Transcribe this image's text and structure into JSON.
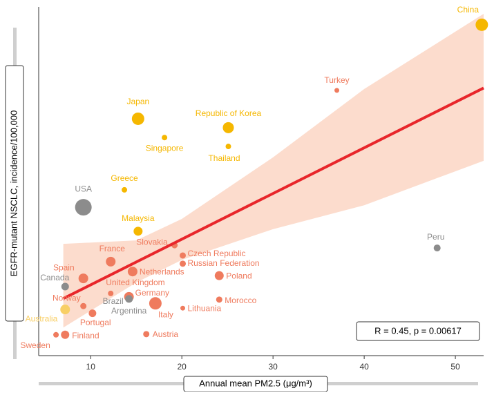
{
  "chart_data": {
    "type": "scatter",
    "x_label": "Annual mean PM2.5 (μg/m³)",
    "y_label": "EGFR-mutant NSCLC, incidence/100,000",
    "annotation": "R = 0.45, p = 0.00617",
    "xlim": [
      4.3,
      53.1
    ],
    "ylim": [
      0,
      100
    ],
    "xticks": [
      10,
      20,
      30,
      40,
      50
    ],
    "labels": [
      "China",
      "Turkey",
      "Japan",
      "Republic of Korea",
      "Singapore",
      "Thailand",
      "Greece",
      "USA",
      "Malaysia",
      "Peru",
      "Slovakia",
      "Czech Republic",
      "Russian Federation",
      "France",
      "Netherlands",
      "Poland",
      "Spain",
      "Canada",
      "United Kingdom",
      "Germany",
      "Brazil",
      "Argentina",
      "Morocco",
      "Italy",
      "Lithuania",
      "Norway",
      "Australia",
      "Portugal",
      "Sweden",
      "Finland",
      "Austria"
    ],
    "x": [
      52.9,
      37,
      15.2,
      25.1,
      18.1,
      25.1,
      13.7,
      9.2,
      15.2,
      48,
      19.2,
      20.1,
      20.1,
      12.2,
      14.6,
      24.1,
      9.2,
      7.2,
      12.2,
      14.2,
      14.2,
      14.3,
      24.1,
      17.1,
      20.1,
      9.2,
      7.2,
      10.2,
      6.2,
      7.2,
      16.1
    ],
    "y": [
      96.8,
      77.6,
      69.3,
      66.7,
      63.8,
      61.2,
      48.5,
      43.4,
      36.4,
      31.5,
      32.3,
      29.3,
      26.9,
      27.5,
      24.6,
      23.4,
      22.6,
      20.2,
      18.2,
      17.2,
      16.6,
      16.4,
      16.4,
      15.3,
      13.9,
      14.5,
      13.5,
      12.4,
      6.1,
      6.1,
      6.3
    ],
    "sizes": [
      9,
      3.5,
      9,
      8,
      4,
      4,
      4,
      12,
      6.5,
      5,
      4.5,
      4.5,
      4.5,
      7,
      7,
      6.5,
      7,
      5.5,
      4,
      7,
      5.5,
      4,
      4.5,
      9,
      3.5,
      4.5,
      7,
      5.5,
      4,
      6,
      4.5
    ],
    "colors": [
      "#f5b700",
      "#ef7b5e",
      "#f5b700",
      "#f5b700",
      "#f5b700",
      "#f5b700",
      "#f5b700",
      "#8c8c8c",
      "#f5b700",
      "#8c8c8c",
      "#ef7b5e",
      "#ef7b5e",
      "#ef7b5e",
      "#ef7b5e",
      "#ef7b5e",
      "#ef7b5e",
      "#ef7b5e",
      "#8c8c8c",
      "#ef7b5e",
      "#ef7b5e",
      "#8c8c8c",
      "#8c8c8c",
      "#ef7b5e",
      "#ef7b5e",
      "#ef7b5e",
      "#ef7b5e",
      "#f8cf66",
      "#ef7b5e",
      "#ef7b5e",
      "#ef7b5e",
      "#ef7b5e"
    ],
    "fit": {
      "x": [
        7,
        53.1
      ],
      "y": [
        16.7,
        78.3
      ],
      "color": "#e8262b"
    },
    "band": {
      "x": [
        7,
        15,
        20,
        30,
        40,
        53.1
      ],
      "upper": [
        32.7,
        33.7,
        40,
        58,
        78,
        100
      ],
      "lower": [
        8.2,
        21.4,
        28,
        37,
        44,
        57
      ],
      "color": "#fcdccd"
    }
  }
}
